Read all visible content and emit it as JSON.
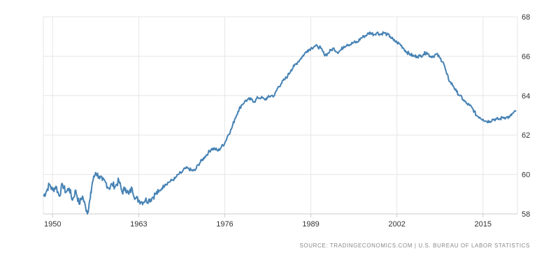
{
  "chart_data": {
    "type": "line",
    "title": "",
    "xlabel": "",
    "ylabel": "",
    "xlim": [
      1948.6,
      2020.2
    ],
    "ylim": [
      58,
      68
    ],
    "x_ticks": [
      1950,
      1963,
      1976,
      1989,
      2002,
      2015
    ],
    "x_tick_labels": [
      "1950",
      "1963",
      "1976",
      "1989",
      "2002",
      "2015"
    ],
    "y_ticks": [
      58,
      60,
      62,
      64,
      66,
      68
    ],
    "y_tick_labels": [
      "58",
      "60",
      "62",
      "64",
      "66",
      "68"
    ],
    "grid": true,
    "legend": "none",
    "line_color": "#4682b4",
    "grid_color": "#e6e6e6",
    "series": [
      {
        "x": [
          1948.6,
          1949.0,
          1949.5,
          1950.0,
          1950.5,
          1951.0,
          1951.5,
          1952.0,
          1952.5,
          1953.0,
          1953.5,
          1954.0,
          1954.5,
          1955.0,
          1955.3,
          1955.7,
          1956.0,
          1956.5,
          1957.0,
          1957.5,
          1958.0,
          1958.5,
          1959.0,
          1959.5,
          1960.0,
          1960.5,
          1961.0,
          1961.5,
          1962.0,
          1962.5,
          1963.0,
          1963.5,
          1964.0,
          1964.5,
          1965.0,
          1965.5,
          1966.0,
          1966.5,
          1967.0,
          1967.5,
          1968.0,
          1968.5,
          1969.0,
          1969.5,
          1970.0,
          1970.5,
          1971.0,
          1971.5,
          1972.0,
          1972.5,
          1973.0,
          1973.5,
          1974.0,
          1974.5,
          1975.0,
          1975.5,
          1976.0,
          1976.5,
          1977.0,
          1977.5,
          1978.0,
          1978.5,
          1979.0,
          1979.5,
          1980.0,
          1980.5,
          1981.0,
          1981.5,
          1982.0,
          1982.5,
          1983.0,
          1983.5,
          1984.0,
          1984.5,
          1985.0,
          1985.5,
          1986.0,
          1986.5,
          1987.0,
          1987.5,
          1988.0,
          1988.5,
          1989.0,
          1989.5,
          1990.0,
          1990.5,
          1991.0,
          1991.5,
          1992.0,
          1992.5,
          1993.0,
          1993.5,
          1994.0,
          1994.5,
          1995.0,
          1995.5,
          1996.0,
          1996.5,
          1997.0,
          1997.5,
          1998.0,
          1998.5,
          1999.0,
          1999.5,
          2000.0,
          2000.5,
          2001.0,
          2001.5,
          2002.0,
          2002.5,
          2003.0,
          2003.5,
          2004.0,
          2004.5,
          2005.0,
          2005.5,
          2006.0,
          2006.5,
          2007.0,
          2007.5,
          2008.0,
          2008.5,
          2009.0,
          2009.5,
          2010.0,
          2010.5,
          2011.0,
          2011.5,
          2012.0,
          2012.5,
          2013.0,
          2013.5,
          2014.0,
          2014.5,
          2015.0,
          2015.5,
          2016.0,
          2016.5,
          2017.0,
          2017.5,
          2018.0,
          2018.5,
          2019.0,
          2019.5,
          2020.0
        ],
        "values": [
          58.9,
          59.1,
          59.5,
          59.2,
          59.4,
          58.9,
          59.5,
          59.1,
          59.3,
          58.7,
          59.2,
          58.5,
          58.9,
          58.3,
          58.1,
          58.8,
          59.6,
          60.1,
          59.9,
          59.7,
          59.6,
          59.3,
          59.5,
          59.4,
          59.7,
          59.1,
          59.3,
          59.0,
          59.3,
          58.8,
          58.7,
          58.6,
          58.7,
          58.7,
          58.8,
          59.0,
          59.1,
          59.3,
          59.5,
          59.6,
          59.7,
          59.8,
          60.0,
          60.1,
          60.3,
          60.3,
          60.2,
          60.2,
          60.5,
          60.7,
          60.9,
          61.1,
          61.3,
          61.3,
          61.2,
          61.4,
          61.6,
          62.0,
          62.3,
          62.8,
          63.2,
          63.5,
          63.7,
          63.8,
          63.8,
          63.7,
          63.9,
          63.9,
          63.8,
          63.9,
          64.0,
          64.0,
          64.4,
          64.6,
          64.8,
          65.0,
          65.3,
          65.5,
          65.7,
          65.9,
          66.1,
          66.3,
          66.4,
          66.5,
          66.5,
          66.4,
          66.1,
          66.1,
          66.3,
          66.4,
          66.2,
          66.3,
          66.5,
          66.6,
          66.6,
          66.7,
          66.7,
          66.9,
          67.0,
          67.1,
          67.2,
          67.1,
          67.2,
          67.1,
          67.2,
          67.1,
          67.0,
          66.8,
          66.7,
          66.6,
          66.4,
          66.2,
          66.1,
          66.0,
          66.0,
          66.0,
          66.1,
          66.2,
          66.0,
          66.0,
          66.1,
          65.9,
          65.7,
          65.1,
          64.7,
          64.5,
          64.2,
          64.0,
          63.8,
          63.6,
          63.5,
          63.3,
          63.0,
          62.9,
          62.8,
          62.7,
          62.7,
          62.8,
          62.8,
          62.8,
          62.9,
          62.9,
          62.9,
          63.1,
          63.2
        ]
      }
    ]
  },
  "source": "SOURCE: TRADINGECONOMICS.COM  |  U.S. BUREAU OF LABOR STATISTICS"
}
